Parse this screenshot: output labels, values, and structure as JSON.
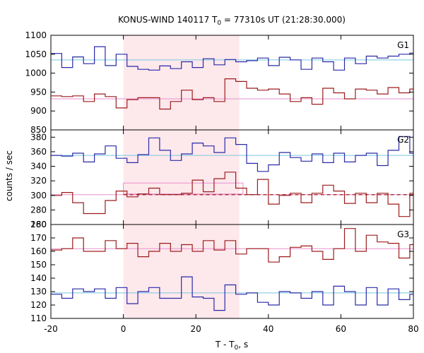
{
  "chart_data": {
    "type": "line",
    "title": {
      "prefix": "KONUS-WIND 140117 T",
      "sub": "0",
      "suffix": " = 77310s UT (21:28:30.000)"
    },
    "xlabel": {
      "prefix": "T - T",
      "sub": "0",
      "suffix": ", s"
    },
    "ylabel": "counts / sec",
    "xlim": [
      -20,
      80
    ],
    "x_ticks": [
      "-20",
      "0",
      "20",
      "40",
      "60",
      "80"
    ],
    "x_tick_values": [
      -20,
      0,
      20,
      40,
      60,
      80
    ],
    "shaded_interval": [
      0,
      32
    ],
    "colors": {
      "blue": "#2a2aa8",
      "red": "#9c1c1c",
      "cyan": "#79c8e0",
      "pink": "#e890cc",
      "shade": "#fde8ec"
    },
    "panels": [
      {
        "label": "G1",
        "ylim": [
          850,
          1100
        ],
        "y_ticks": [
          "850",
          "900",
          "950",
          "1000",
          "1050",
          "1100"
        ],
        "y_tick_values": [
          850,
          900,
          950,
          1000,
          1050,
          1100
        ],
        "series": [
          {
            "color": "blue",
            "x": [
              -20,
              -17,
              -14,
              -11,
              -8,
              -5,
              -2,
              1,
              4,
              7,
              10,
              13,
              16,
              19,
              22,
              25,
              28,
              31,
              34,
              37,
              40,
              43,
              46,
              49,
              52,
              55,
              58,
              61,
              64,
              67,
              70,
              73,
              76,
              79
            ],
            "y": [
              1052,
              1015,
              1043,
              1025,
              1070,
              1020,
              1050,
              1018,
              1010,
              1008,
              1019,
              1012,
              1030,
              1015,
              1038,
              1022,
              1036,
              1030,
              1033,
              1040,
              1020,
              1042,
              1035,
              1010,
              1040,
              1030,
              1008,
              1040,
              1025,
              1045,
              1040,
              1045,
              1050,
              1053
            ]
          },
          {
            "color": "red",
            "x": [
              -20,
              -17,
              -14,
              -11,
              -8,
              -5,
              -2,
              1,
              4,
              7,
              10,
              13,
              16,
              19,
              22,
              25,
              28,
              31,
              34,
              37,
              40,
              43,
              46,
              49,
              52,
              55,
              58,
              61,
              64,
              67,
              70,
              73,
              76,
              79
            ],
            "y": [
              940,
              938,
              940,
              925,
              945,
              938,
              908,
              930,
              935,
              935,
              905,
              925,
              955,
              930,
              935,
              925,
              985,
              978,
              960,
              955,
              958,
              945,
              925,
              935,
              918,
              960,
              948,
              932,
              958,
              955,
              945,
              962,
              948,
              958
            ]
          }
        ],
        "background_lines": [
          {
            "color": "cyan",
            "y": 1035
          },
          {
            "color": "pink",
            "y": 932
          }
        ]
      },
      {
        "label": "G2",
        "ylim": [
          260,
          390
        ],
        "y_ticks": [
          "260",
          "280",
          "300",
          "320",
          "340",
          "360",
          "380"
        ],
        "y_tick_values": [
          260,
          280,
          300,
          320,
          340,
          360,
          380
        ],
        "series": [
          {
            "color": "blue",
            "x": [
              -20,
              -17,
              -14,
              -11,
              -8,
              -5,
              -2,
              1,
              4,
              7,
              10,
              13,
              16,
              19,
              22,
              25,
              28,
              31,
              34,
              37,
              40,
              43,
              46,
              49,
              52,
              55,
              58,
              61,
              64,
              67,
              70,
              73,
              76,
              79
            ],
            "y": [
              355,
              354,
              358,
              346,
              357,
              368,
              351,
              345,
              356,
              379,
              362,
              348,
              357,
              372,
              368,
              359,
              379,
              370,
              344,
              333,
              342,
              359,
              352,
              347,
              357,
              345,
              358,
              346,
              355,
              358,
              341,
              362,
              381,
              358
            ]
          },
          {
            "color": "red",
            "x": [
              -20,
              -17,
              -14,
              -11,
              -8,
              -5,
              -2,
              1,
              4,
              7,
              10,
              13,
              16,
              19,
              22,
              25,
              28,
              31,
              34,
              37,
              40,
              43,
              46,
              49,
              52,
              55,
              58,
              61,
              64,
              67,
              70,
              73,
              76,
              79
            ],
            "y": [
              300,
              304,
              290,
              275,
              275,
              293,
              306,
              298,
              302,
              310,
              301,
              301,
              303,
              321,
              305,
              323,
              332,
              310,
              301,
              322,
              288,
              300,
              303,
              290,
              303,
              314,
              306,
              289,
              303,
              290,
              303,
              288,
              271,
              303
            ]
          }
        ],
        "background_lines": [
          {
            "color": "cyan",
            "y": 355
          },
          {
            "color": "pink",
            "y": 301
          }
        ],
        "fit_band": {
          "x": [
            0,
            33
          ],
          "y_low": 302,
          "y_high": 317
        },
        "dashed_fit": {
          "x": [
            0,
            80
          ],
          "y": [
            301,
            301
          ]
        }
      },
      {
        "label": "G3",
        "ylim": [
          110,
          180
        ],
        "y_ticks": [
          "110",
          "120",
          "130",
          "140",
          "150",
          "160",
          "170",
          "180"
        ],
        "y_tick_values": [
          110,
          120,
          130,
          140,
          150,
          160,
          170,
          180
        ],
        "series": [
          {
            "color": "red",
            "x": [
              -20,
              -17,
              -14,
              -11,
              -8,
              -5,
              -2,
              1,
              4,
              7,
              10,
              13,
              16,
              19,
              22,
              25,
              28,
              31,
              34,
              37,
              40,
              43,
              46,
              49,
              52,
              55,
              58,
              61,
              64,
              67,
              70,
              73,
              76,
              79
            ],
            "y": [
              161,
              162,
              170,
              160,
              160,
              168,
              162,
              166,
              156,
              160,
              166,
              160,
              165,
              160,
              168,
              161,
              168,
              158,
              162,
              162,
              152,
              156,
              163,
              164,
              160,
              154,
              162,
              177,
              160,
              172,
              167,
              166,
              155,
              165
            ]
          },
          {
            "color": "blue",
            "x": [
              -20,
              -17,
              -14,
              -11,
              -8,
              -5,
              -2,
              1,
              4,
              7,
              10,
              13,
              16,
              19,
              22,
              25,
              28,
              31,
              34,
              37,
              40,
              43,
              46,
              49,
              52,
              55,
              58,
              61,
              64,
              67,
              70,
              73,
              76,
              79
            ],
            "y": [
              128,
              125,
              132,
              130,
              132,
              125,
              133,
              121,
              130,
              133,
              125,
              125,
              141,
              126,
              125,
              116,
              135,
              128,
              129,
              122,
              120,
              130,
              129,
              125,
              130,
              120,
              134,
              130,
              120,
              133,
              120,
              132,
              124,
              128
            ]
          }
        ],
        "background_lines": [
          {
            "color": "cyan",
            "y": 129
          },
          {
            "color": "pink",
            "y": 162
          }
        ]
      }
    ]
  }
}
